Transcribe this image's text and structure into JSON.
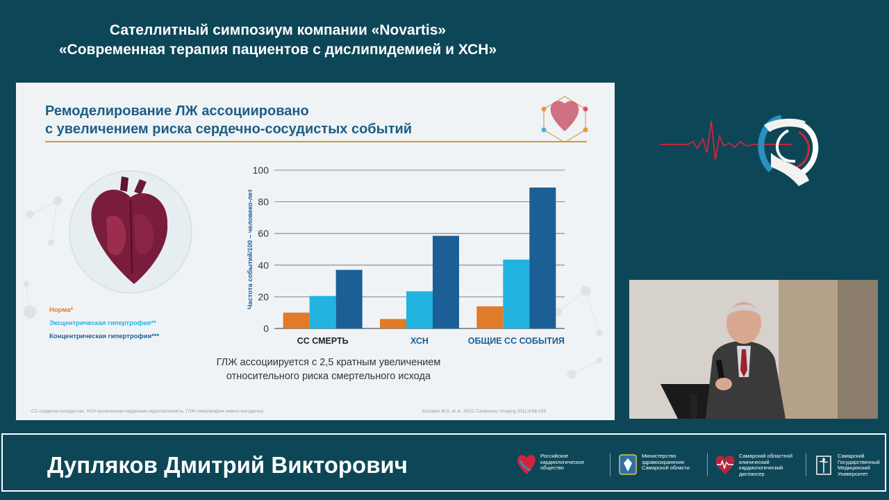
{
  "header": {
    "line1": "Сателлитный симпозиум компании «Novartis»",
    "line2": "«Современная терапия пациентов с дислипидемией и ХСН»"
  },
  "slide": {
    "title_line1": "Ремоделирование ЛЖ ассоциировано",
    "title_line2": "с увеличением риска сердечно-сосудистых событий",
    "legend": [
      {
        "label": "Норма*",
        "color": "#e07b2a"
      },
      {
        "label": "Эксцентрическая гипертрофия**",
        "color": "#22b3e0"
      },
      {
        "label": "Концентрическая гипертрофия***",
        "color": "#1c5e96"
      }
    ],
    "conclusion_line1": "ГЛЖ ассоциируется с 2,5 кратным увеличением",
    "conclusion_line2": "относительного риска смертельного исхода",
    "footnote_left": "СС-сердечно-сосудистая, ХСН-хроническая сердечная недостаточность, ГЛЖ-гипертрофия левого желудочка;",
    "footnote_right": "Konstam M.A. et al. JACC Cardiovasc Imaging 2011;4:98-108"
  },
  "chart_data": {
    "type": "bar",
    "categories": [
      "СС СМЕРТЬ",
      "ХСН",
      "ОБЩИЕ СС СОБЫТИЯ"
    ],
    "category_colors": [
      "#222222",
      "#1c5e96",
      "#1c5e96"
    ],
    "series": [
      {
        "name": "Норма*",
        "values": [
          10,
          6,
          14
        ],
        "color": "#e07b2a"
      },
      {
        "name": "Эксцентрическая гипертрофия**",
        "values": [
          20.5,
          23.5,
          43.5
        ],
        "color": "#22b3e0"
      },
      {
        "name": "Концентрическая гипертрофия***",
        "values": [
          37,
          58.5,
          89
        ],
        "color": "#1c5e96"
      }
    ],
    "ylabel": "Частота событий/100 – человеко-лет",
    "ylim": [
      0,
      100
    ],
    "yticks": [
      0,
      20,
      40,
      60,
      80,
      100
    ],
    "grid": true,
    "legend_position": "left"
  },
  "speaker": {
    "name": "Дупляков Дмитрий Викторович"
  },
  "partners": [
    {
      "lines": [
        "Российское",
        "кардиологическое",
        "общество"
      ],
      "icon": "rko-heart-icon"
    },
    {
      "lines": [
        "Министерство",
        "здравоохранения",
        "Самарской области"
      ],
      "icon": "samara-emblem-icon"
    },
    {
      "lines": [
        "Самарский областной",
        "клинический",
        "кардиологический",
        "диспансер"
      ],
      "icon": "cardio-dispensary-icon"
    },
    {
      "lines": [
        "Самарский",
        "Государственный",
        "Медицинский",
        "Университет"
      ],
      "icon": "university-emblem-icon"
    }
  ]
}
